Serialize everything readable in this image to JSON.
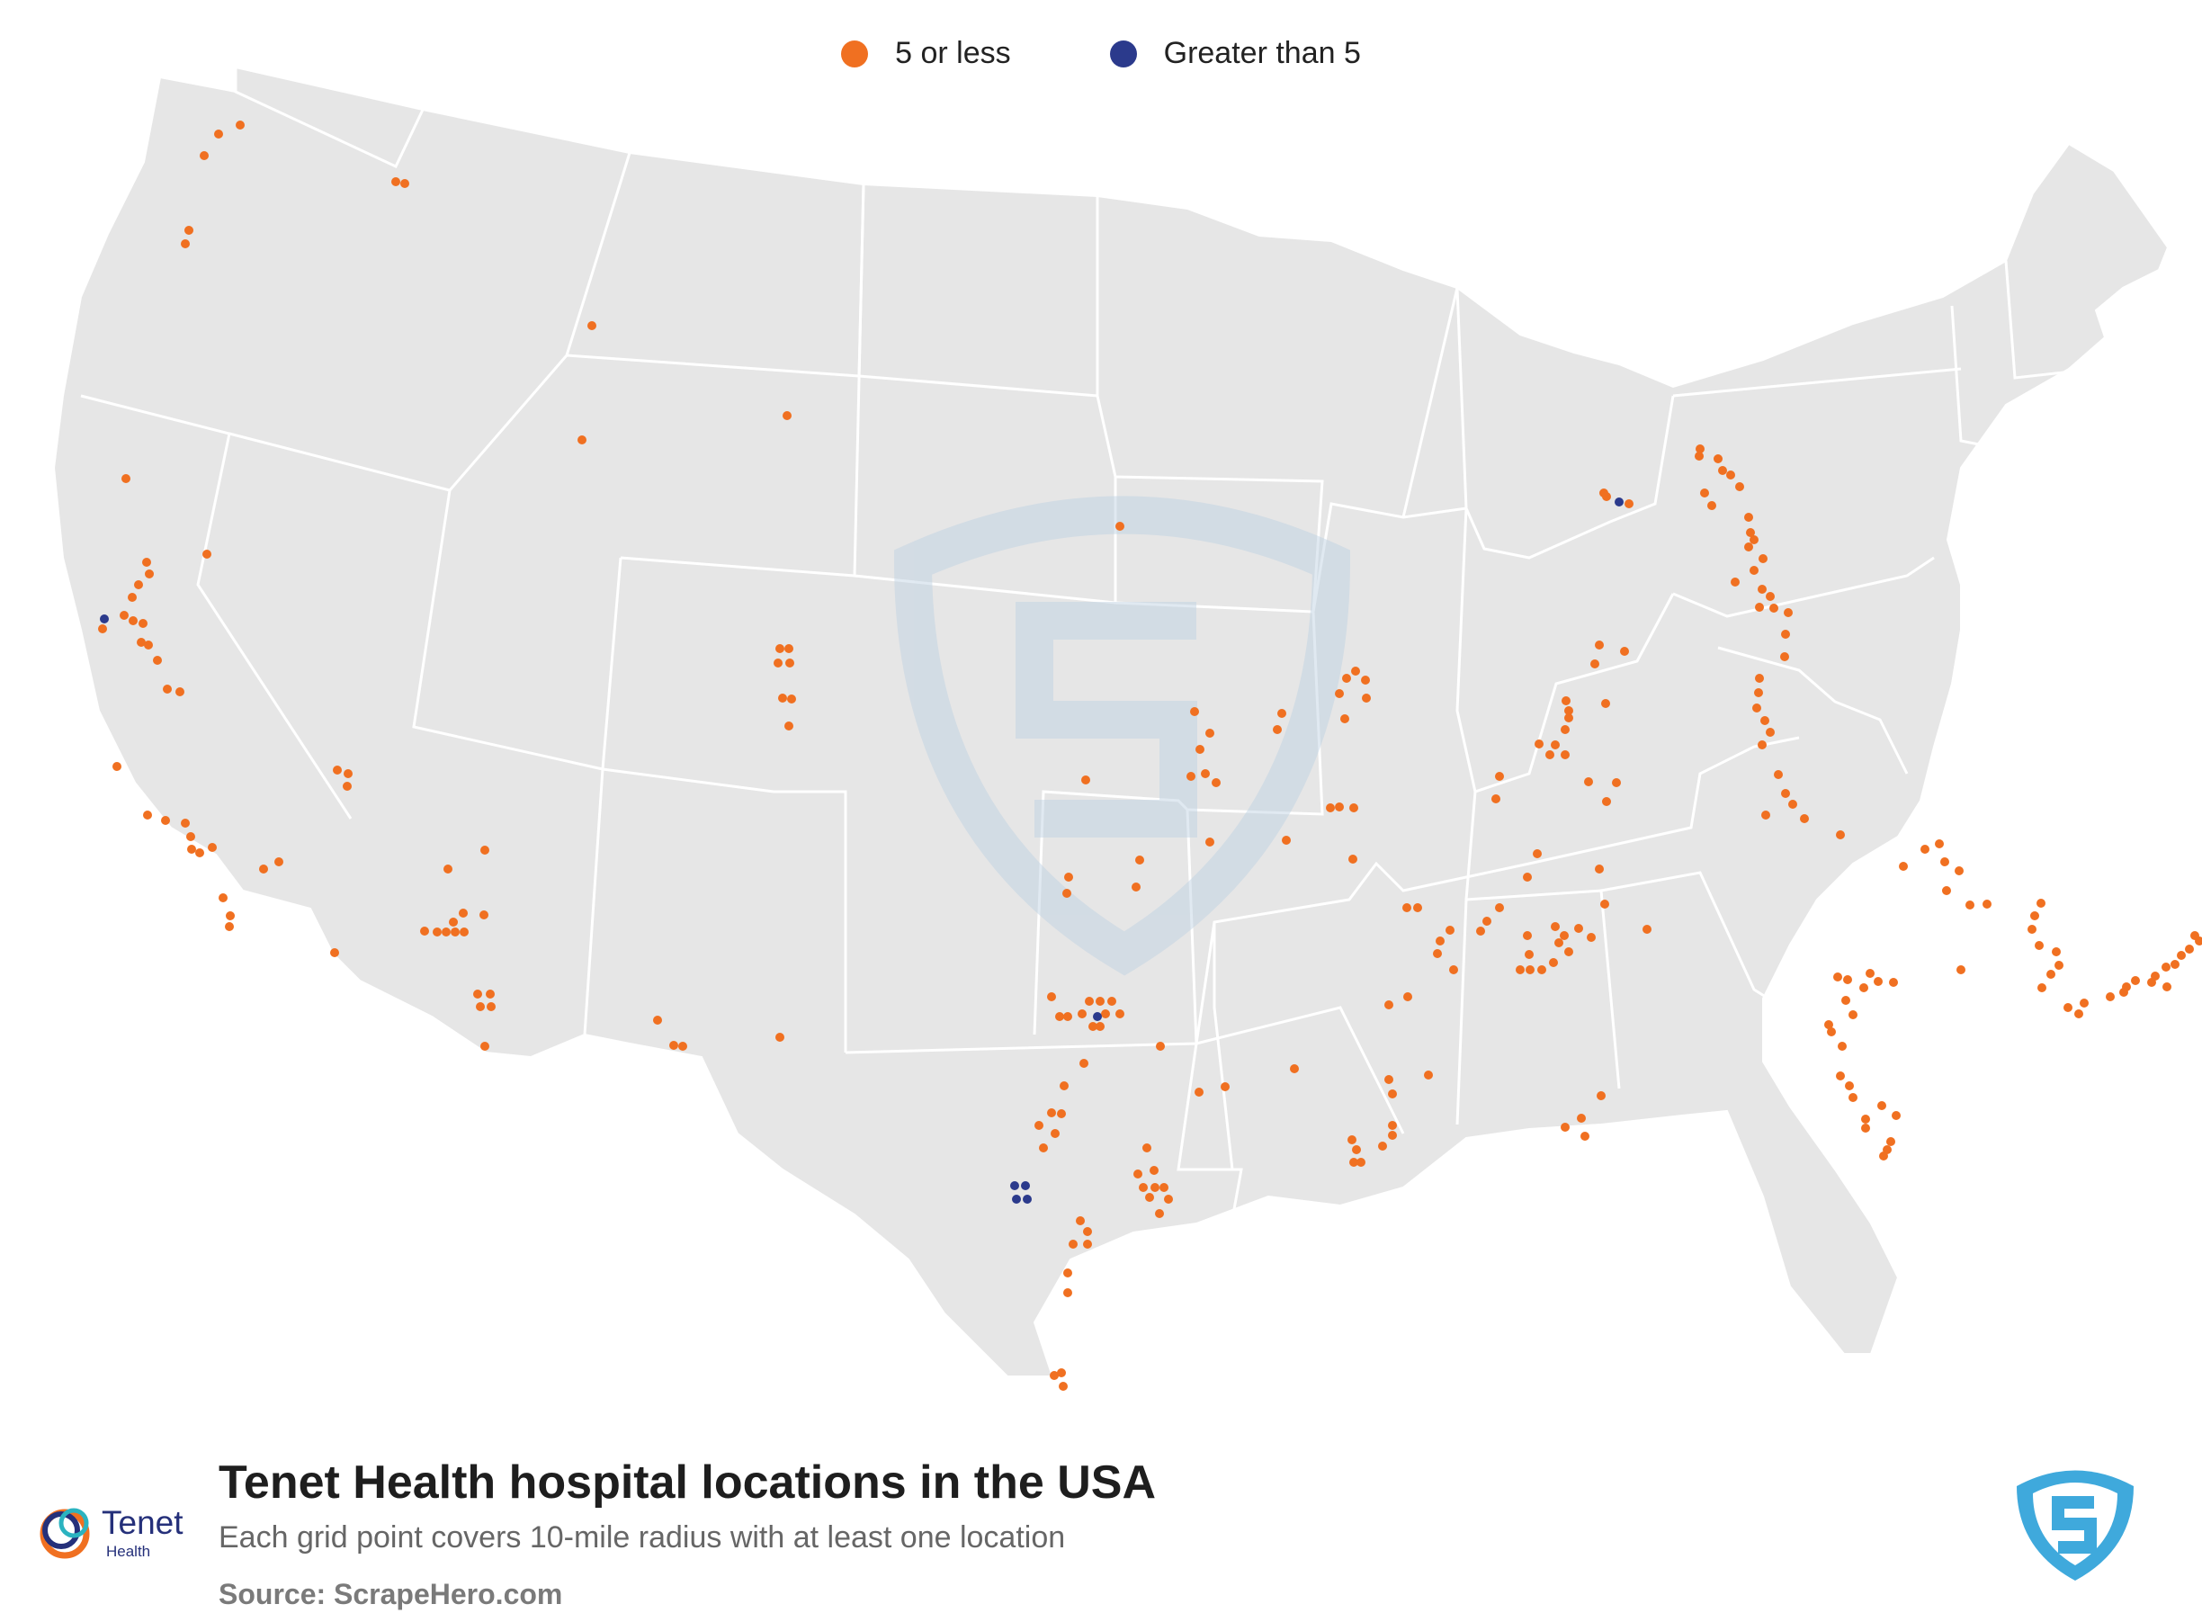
{
  "legend": {
    "items": [
      {
        "label": "5 or less",
        "color": "#f07021"
      },
      {
        "label": "Greater than 5",
        "color": "#2b3a8c"
      }
    ]
  },
  "footer": {
    "title": "Tenet Health hospital locations in the USA",
    "subtitle": "Each grid point covers 10-mile radius with at least one location",
    "source": "Source: ScrapeHero.com"
  },
  "brand": {
    "name": "Tenet",
    "sub": "Health"
  },
  "colors": {
    "map_fill": "#e6e6e6",
    "state_border": "#ffffff",
    "orange": "#f07021",
    "navy": "#2b3a8c",
    "watermark": "#c9d9e8"
  },
  "icons": {
    "brand": "tenet-logo-icon",
    "watermark": "scrapehero-shield-icon"
  }
}
